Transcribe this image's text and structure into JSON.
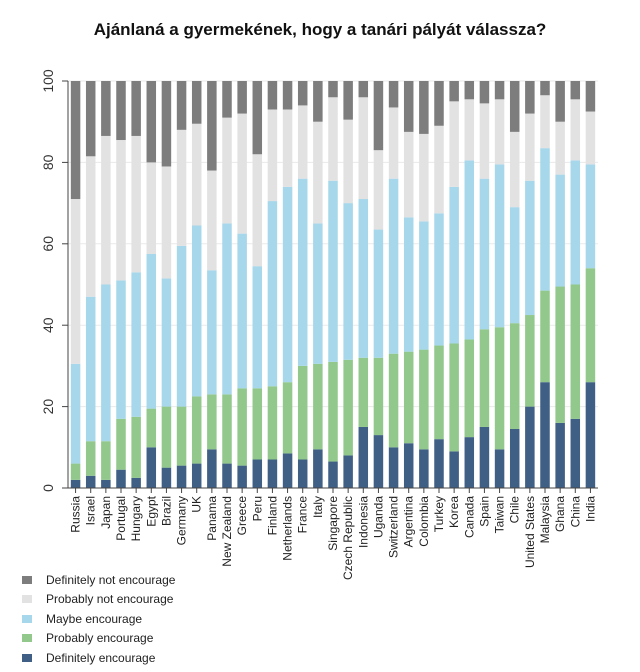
{
  "chart_data": {
    "type": "bar",
    "stacked": true,
    "title": "Ajánlaná a gyermekének, hogy a tanári pályát válassza?",
    "xlabel": "",
    "ylabel": "",
    "ylim": [
      0,
      100
    ],
    "yticks": [
      0,
      20,
      40,
      60,
      80,
      100
    ],
    "grid": true,
    "legend_position": "bottom-left",
    "categories": [
      "Russia",
      "Israel",
      "Japan",
      "Portugal",
      "Hungary",
      "Egypt",
      "Brazil",
      "Germany",
      "UK",
      "Panama",
      "New Zealand",
      "Greece",
      "Peru",
      "Finland",
      "Netherlands",
      "France",
      "Italy",
      "Singapore",
      "Czech Republic",
      "Indonesia",
      "Uganda",
      "Switzerland",
      "Argentina",
      "Colombia",
      "Turkey",
      "Korea",
      "Canada",
      "Spain",
      "Taiwan",
      "Chile",
      "United States",
      "Malaysia",
      "Ghana",
      "China",
      "India"
    ],
    "series": [
      {
        "name": "Definitely encourage",
        "color": "#3f5f84",
        "values": [
          2,
          3,
          2,
          4.5,
          2.5,
          10,
          5,
          5.5,
          6,
          9.5,
          6,
          5.5,
          7,
          7,
          8.5,
          7,
          9.5,
          6.5,
          8,
          15,
          13,
          10,
          11,
          9.5,
          12,
          9,
          12.5,
          15,
          9.5,
          14.5,
          20,
          26,
          16,
          17,
          26
        ]
      },
      {
        "name": "Probably encourage",
        "color": "#92c88c",
        "values": [
          4,
          8.5,
          9.5,
          12.5,
          15,
          9.5,
          15,
          14.5,
          16.5,
          13.5,
          17,
          19,
          17.5,
          18,
          17.5,
          23,
          21,
          24.5,
          23.5,
          17,
          19,
          23,
          22.5,
          24.5,
          23,
          26.5,
          24,
          24,
          30,
          26,
          22.5,
          22.5,
          33.5,
          33,
          28
        ]
      },
      {
        "name": "Maybe encourage",
        "color": "#a7d7ea",
        "values": [
          24.5,
          35.5,
          38.5,
          34,
          35.5,
          38,
          31.5,
          39.5,
          42,
          30.5,
          42,
          38,
          30,
          45.5,
          48,
          46,
          34.5,
          44.5,
          38.5,
          39,
          31.5,
          43,
          33,
          31.5,
          32.5,
          38.5,
          44,
          37,
          40,
          28.5,
          33,
          35,
          27.5,
          30.5,
          25.5
        ]
      },
      {
        "name": "Probably not encourage",
        "color": "#e2e2e2",
        "values": [
          40.5,
          34.5,
          36.5,
          34.5,
          33.5,
          22.5,
          27.5,
          28.5,
          25,
          24.5,
          26,
          29.5,
          27.5,
          22.5,
          19,
          18,
          25,
          20.5,
          20.5,
          25,
          19.5,
          17.5,
          21,
          21.5,
          21.5,
          21,
          15,
          18.5,
          16,
          18.5,
          16.5,
          13,
          13,
          15,
          13
        ]
      },
      {
        "name": "Definitely not encourage",
        "color": "#7d7d7d",
        "values": [
          29,
          18.5,
          13.5,
          14.5,
          13.5,
          20,
          21,
          12,
          10.5,
          22,
          9,
          8,
          18,
          7,
          7,
          6,
          10,
          4,
          9.5,
          4,
          17,
          6.5,
          12.5,
          13,
          11,
          5,
          4.5,
          5.5,
          4.5,
          12.5,
          8,
          3.5,
          10,
          4.5,
          7.5
        ]
      }
    ]
  }
}
